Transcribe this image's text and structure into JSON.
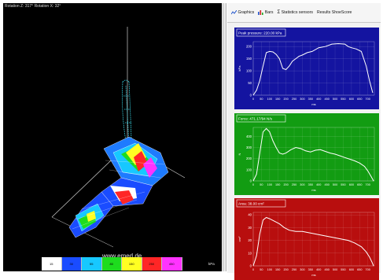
{
  "viewer": {
    "rotation_label": "Rotation Z: 317° Rotation X: 32°",
    "watermark": "www.emed.de",
    "unit": "kPa",
    "color_scale": [
      {
        "label": "15",
        "color": "#ffffff"
      },
      {
        "label": "30",
        "color": "#1a4cff"
      },
      {
        "label": "55",
        "color": "#17c8ff"
      },
      {
        "label": "80",
        "color": "#1edc1e"
      },
      {
        "label": "150",
        "color": "#ffff22"
      },
      {
        "label": "250",
        "color": "#ff2626"
      },
      {
        "label": "450",
        "color": "#ff33ff"
      }
    ]
  },
  "tabs": [
    {
      "label": "Graphics",
      "icon": "graphics-icon"
    },
    {
      "label": "Bars",
      "icon": "bars-icon"
    },
    {
      "label": "Statistics sensors",
      "icon": "sigma-icon"
    },
    {
      "label": "Results ShoeScore",
      "icon": "none"
    }
  ],
  "chart_data": [
    {
      "type": "line",
      "title": "Peak pressure: 220.00 kPa",
      "ylabel": "kPa",
      "xlabel": "ms",
      "background": "#1414a0",
      "ylim": [
        0,
        220
      ],
      "yticks": [
        0,
        50,
        100,
        150,
        200
      ],
      "xlim": [
        0,
        740
      ],
      "xticks": [
        0,
        50,
        100,
        150,
        200,
        250,
        300,
        350,
        400,
        450,
        500,
        550,
        600,
        650,
        700
      ],
      "x": [
        0,
        20,
        40,
        60,
        80,
        100,
        120,
        140,
        160,
        180,
        200,
        220,
        240,
        260,
        280,
        300,
        330,
        360,
        400,
        440,
        480,
        520,
        560,
        580,
        600,
        630,
        660,
        690,
        710,
        730
      ],
      "y": [
        0,
        20,
        60,
        120,
        175,
        180,
        178,
        168,
        150,
        110,
        105,
        120,
        140,
        150,
        160,
        165,
        175,
        180,
        195,
        200,
        210,
        212,
        210,
        200,
        195,
        190,
        180,
        120,
        60,
        10
      ]
    },
    {
      "type": "line",
      "title": "Force: 471.17/94 N/s",
      "ylabel": "N",
      "xlabel": "ms",
      "background": "#129c12",
      "ylim": [
        0,
        480
      ],
      "yticks": [
        0,
        100,
        200,
        300,
        400
      ],
      "xlim": [
        0,
        740
      ],
      "xticks": [
        0,
        50,
        100,
        150,
        200,
        250,
        300,
        350,
        400,
        450,
        500,
        550,
        600,
        650,
        700
      ],
      "x": [
        0,
        20,
        40,
        60,
        80,
        100,
        120,
        140,
        160,
        180,
        200,
        230,
        260,
        290,
        320,
        350,
        380,
        410,
        440,
        470,
        500,
        530,
        560,
        590,
        620,
        650,
        680,
        700,
        720,
        735
      ],
      "y": [
        0,
        60,
        250,
        440,
        470,
        440,
        360,
        300,
        250,
        240,
        250,
        280,
        300,
        290,
        270,
        260,
        275,
        280,
        265,
        250,
        240,
        225,
        210,
        195,
        180,
        160,
        130,
        90,
        40,
        0
      ]
    },
    {
      "type": "line",
      "title": "Area: 38.00 cm²",
      "ylabel": "cm²",
      "xlabel": "ms",
      "background": "#b80e0e",
      "ylim": [
        0,
        42
      ],
      "yticks": [
        0,
        10,
        20,
        30,
        40
      ],
      "xlim": [
        0,
        740
      ],
      "xticks": [
        0,
        50,
        100,
        150,
        200,
        250,
        300,
        350,
        400,
        450,
        500,
        550,
        600,
        650,
        700
      ],
      "x": [
        0,
        20,
        40,
        60,
        80,
        100,
        130,
        160,
        190,
        220,
        260,
        300,
        340,
        380,
        420,
        460,
        500,
        540,
        580,
        620,
        660,
        690,
        710,
        725,
        735
      ],
      "y": [
        0,
        8,
        25,
        36,
        38,
        37,
        35,
        33,
        30,
        28,
        27,
        27,
        26,
        25,
        24,
        23,
        22,
        21,
        20,
        18,
        15,
        11,
        7,
        3,
        0
      ]
    }
  ]
}
